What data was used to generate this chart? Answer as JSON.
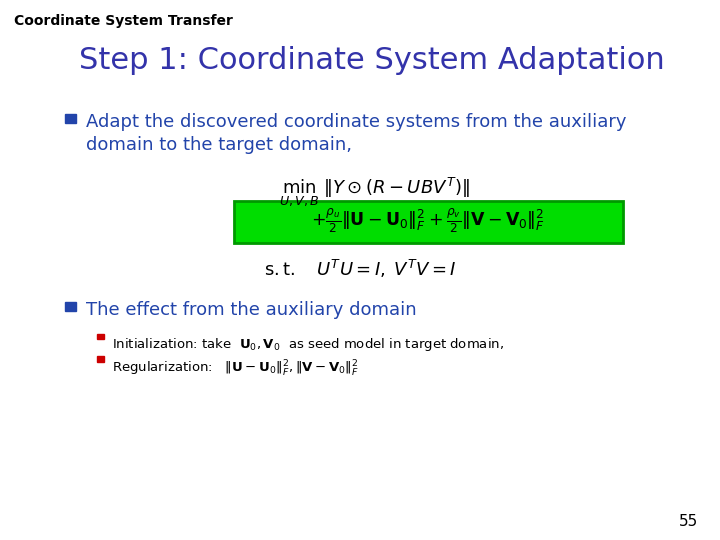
{
  "bg_color": "#ffffff",
  "header_text": "Coordinate System Transfer",
  "header_color": "#000000",
  "header_fontsize": 10,
  "title_text": "Step 1: Coordinate System Adaptation",
  "title_color": "#3333aa",
  "title_fontsize": 22,
  "bullet_color": "#2244aa",
  "bullet1_line1": "Adapt the discovered coordinate systems from the auxiliary",
  "bullet1_line2": "domain to the target domain,",
  "bullet1_fontsize": 13,
  "bullet2_text": "The effect from the auxiliary domain",
  "bullet2_fontsize": 13,
  "sub_bullet_color": "#cc0000",
  "sub_bullet_fontsize": 9.5,
  "formula2_bg": "#00dd00",
  "formula2_edge": "#009900",
  "formula_color": "#000000",
  "page_number": "55",
  "page_fontsize": 11
}
